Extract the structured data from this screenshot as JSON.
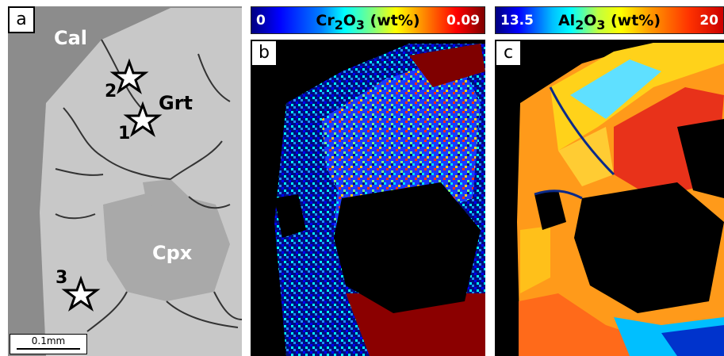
{
  "panel_a": {
    "label": "a",
    "mineral_labels": {
      "cal": "Cal",
      "grt": "Grt",
      "cpx": "Cpx"
    },
    "stars": [
      "2",
      "1",
      "3"
    ],
    "scale_bar": "0.1mm"
  },
  "panel_b": {
    "label": "b",
    "colorbar": {
      "min": "0",
      "title_main": "Cr",
      "sub1": "2",
      "mid": "O",
      "sub2": "3",
      "unit": " (wt%)",
      "max": "0.09"
    }
  },
  "panel_c": {
    "label": "c",
    "colorbar": {
      "min": "13.5",
      "title_main": "Al",
      "sub1": "2",
      "mid": "O",
      "sub2": "3",
      "unit": " (wt%)",
      "max": "20"
    }
  }
}
